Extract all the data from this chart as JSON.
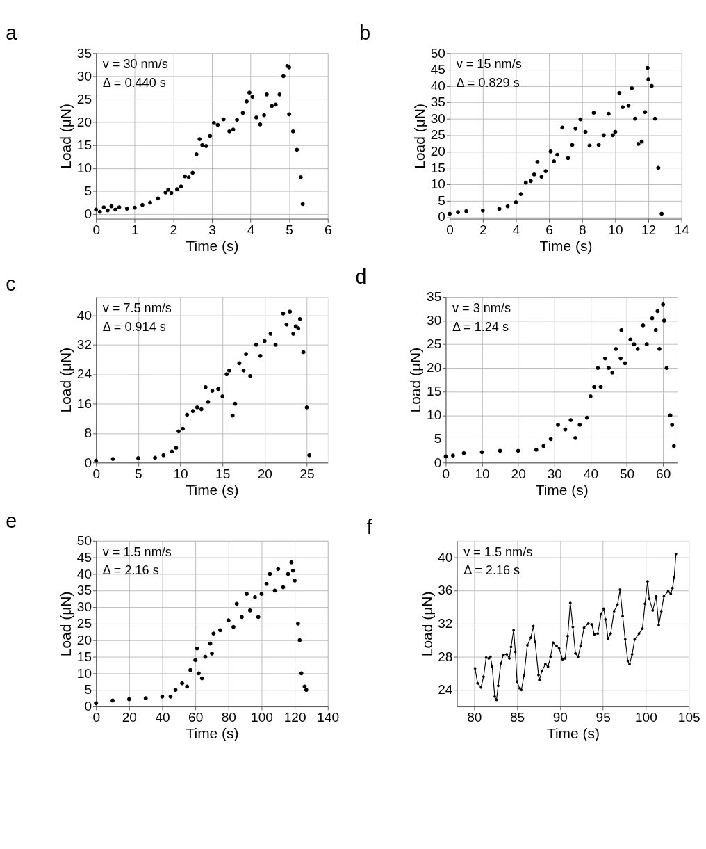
{
  "chart_data": [
    {
      "type": "scatter",
      "title": "a",
      "xlabel": "Time (s)",
      "ylabel": "Load (μN)",
      "xlim": [
        0,
        6
      ],
      "ylim": [
        -1,
        35
      ],
      "xticks": [
        0,
        1,
        2,
        3,
        4,
        5,
        6
      ],
      "yticks": [
        0,
        5,
        10,
        15,
        20,
        25,
        30,
        35
      ],
      "grid": true,
      "marker": "circle",
      "annotations": [
        "v = 30 nm/s",
        "Δ = 0.440 s"
      ],
      "series": [
        {
          "color": "#000000",
          "x": [
            0,
            0.1,
            0.2,
            0.3,
            0.4,
            0.5,
            0.6,
            0.8,
            1.0,
            1.2,
            1.4,
            1.6,
            1.8,
            1.87,
            1.95,
            2.1,
            2.2,
            2.3,
            2.4,
            2.5,
            2.6,
            2.68,
            2.75,
            2.85,
            2.95,
            3.05,
            3.15,
            3.3,
            3.45,
            3.55,
            3.65,
            3.8,
            3.9,
            3.97,
            4.05,
            4.15,
            4.25,
            4.35,
            4.42,
            4.55,
            4.65,
            4.75,
            4.85,
            4.95,
            5.0,
            5.0,
            5.1,
            5.2,
            5.3,
            5.35
          ],
          "values": [
            1,
            0.5,
            1.5,
            0.8,
            1.7,
            1.0,
            1.5,
            1.2,
            1.4,
            2.0,
            2.5,
            3.4,
            4.7,
            5.3,
            4.6,
            5.4,
            6.0,
            8.2,
            8.0,
            9.0,
            13,
            16.3,
            15,
            14.8,
            17,
            19.8,
            19.4,
            20.6,
            18,
            18.4,
            20.5,
            22,
            24.5,
            26.4,
            25.5,
            21,
            19.5,
            21.5,
            26,
            23.5,
            23.8,
            26,
            30,
            32.2,
            31.9,
            21.7,
            18.0,
            14,
            8,
            2.2
          ]
        }
      ]
    },
    {
      "type": "scatter",
      "title": "b",
      "xlabel": "Time (s)",
      "ylabel": "Load (μN)",
      "xlim": [
        0,
        14
      ],
      "ylim": [
        -0.5,
        50
      ],
      "xticks": [
        0,
        2,
        4,
        6,
        8,
        10,
        12,
        14
      ],
      "yticks": [
        0,
        5,
        10,
        15,
        20,
        25,
        30,
        35,
        40,
        45,
        50
      ],
      "grid": true,
      "marker": "circle",
      "annotations": [
        "v = 15 nm/s",
        "Δ = 0.829 s"
      ],
      "series": [
        {
          "color": "#000000",
          "x": [
            0,
            0.5,
            1,
            2,
            3,
            3.5,
            4,
            4.3,
            4.6,
            4.9,
            5.1,
            5.3,
            5.55,
            5.8,
            6.1,
            6.3,
            6.5,
            6.8,
            7.15,
            7.4,
            7.6,
            7.9,
            8.2,
            8.45,
            8.7,
            9.0,
            9.3,
            9.6,
            9.85,
            10.0,
            10.25,
            10.45,
            10.8,
            11.0,
            11.2,
            11.4,
            11.6,
            11.8,
            11.95,
            12.0,
            12.2,
            12.4,
            12.6,
            12.8
          ],
          "values": [
            1,
            1.5,
            1.8,
            2.0,
            2.5,
            3.3,
            4.5,
            7,
            10.5,
            11,
            13,
            16.8,
            12.3,
            14,
            20,
            17,
            19,
            27.3,
            18,
            22,
            27,
            29.8,
            26,
            21.8,
            31.8,
            22,
            25,
            31.5,
            25,
            26,
            37.8,
            33.5,
            34,
            39.3,
            30,
            22.3,
            23,
            32,
            45.5,
            42,
            40,
            30,
            15,
            1
          ]
        }
      ]
    },
    {
      "type": "scatter",
      "title": "c",
      "xlabel": "Time (s)",
      "ylabel": "Load (μN)",
      "xlim": [
        0,
        27.5
      ],
      "ylim": [
        0,
        45
      ],
      "xticks": [
        0,
        5,
        10,
        15,
        20,
        25
      ],
      "yticks": [
        0,
        8,
        16,
        24,
        32,
        40
      ],
      "grid": true,
      "marker": "circle",
      "annotations": [
        "v = 7.5 nm/s",
        "Δ = 0.914 s"
      ],
      "series": [
        {
          "color": "#000000",
          "x": [
            0,
            2,
            5,
            7,
            8,
            9,
            9.5,
            9.8,
            10.3,
            10.8,
            11.5,
            12,
            12.5,
            13,
            13.3,
            13.8,
            14.5,
            15,
            15.5,
            15.8,
            16.2,
            16.5,
            17,
            17.5,
            17.8,
            18.3,
            19,
            19.5,
            20,
            20.7,
            21.3,
            22.2,
            22.6,
            23,
            23.4,
            23.7,
            24,
            24.2,
            24.6,
            25,
            25.3
          ],
          "values": [
            0.5,
            1,
            1.2,
            1.3,
            2,
            3,
            4,
            8.5,
            9.2,
            13,
            14,
            15,
            14.5,
            20.5,
            16.5,
            19.5,
            20,
            18,
            24,
            25,
            12.8,
            16,
            27,
            25,
            29.5,
            23.5,
            32,
            29,
            33,
            35,
            32,
            40.5,
            37.5,
            41,
            35,
            37,
            36.5,
            39,
            30,
            15,
            2
          ]
        }
      ]
    },
    {
      "type": "scatter",
      "title": "d",
      "xlabel": "Time (s)",
      "ylabel": "Load (μN)",
      "xlim": [
        0,
        64
      ],
      "ylim": [
        0,
        35
      ],
      "xticks": [
        0,
        10,
        20,
        30,
        40,
        50,
        60
      ],
      "yticks": [
        0,
        5,
        10,
        15,
        20,
        25,
        30,
        35
      ],
      "grid": true,
      "marker": "circle",
      "annotations": [
        "v = 3 nm/s",
        "Δ = 1.24 s"
      ],
      "series": [
        {
          "color": "#000000",
          "x": [
            0,
            2,
            5,
            10,
            15,
            20,
            25,
            27,
            29,
            31,
            33,
            34.5,
            35.8,
            37,
            39,
            40,
            41,
            42,
            42.8,
            44,
            45,
            46,
            47,
            48.3,
            48.5,
            49.5,
            51,
            52,
            53,
            54.5,
            55.5,
            57,
            58,
            58.5,
            59,
            60,
            60.3,
            61,
            62,
            62.5,
            63
          ],
          "values": [
            1.3,
            1.5,
            2,
            2.2,
            2.5,
            2.5,
            2.7,
            3.5,
            5,
            8,
            7,
            9,
            5.2,
            8,
            9.5,
            14,
            16,
            20,
            16,
            22,
            20,
            19,
            24,
            22,
            28,
            21,
            26,
            25,
            24,
            29,
            25,
            30.5,
            28,
            32,
            24,
            33.4,
            30,
            20,
            10,
            8,
            3.5
          ]
        }
      ]
    },
    {
      "type": "scatter",
      "title": "e",
      "xlabel": "Time (s)",
      "ylabel": "Load (μN)",
      "xlim": [
        0,
        140
      ],
      "ylim": [
        0,
        50
      ],
      "xticks": [
        0,
        20,
        40,
        60,
        80,
        100,
        120,
        140
      ],
      "yticks": [
        0,
        5,
        10,
        15,
        20,
        25,
        30,
        35,
        40,
        45,
        50
      ],
      "grid": true,
      "marker": "circle",
      "annotations": [
        "v = 1.5 nm/s",
        "Δ = 2.16 s"
      ],
      "series": [
        {
          "color": "#000000",
          "x": [
            0,
            10,
            20,
            30,
            40,
            45,
            48,
            52,
            55,
            57,
            60,
            61,
            62,
            64,
            66,
            69,
            70,
            71,
            75,
            80,
            83,
            85,
            88,
            91,
            93,
            96,
            98,
            100,
            103,
            105,
            108,
            110,
            113,
            116,
            118,
            119,
            120,
            122,
            123,
            124,
            126,
            127
          ],
          "values": [
            1,
            1.8,
            2.2,
            2.5,
            3,
            3,
            5,
            7,
            6,
            11,
            14,
            17.5,
            10,
            8.5,
            15,
            19,
            16,
            22,
            23,
            26,
            24,
            31,
            27,
            34,
            29,
            33,
            27,
            34,
            37,
            40,
            35,
            41.5,
            36,
            40,
            43.5,
            41,
            38,
            25,
            20,
            10,
            6,
            5
          ]
        }
      ]
    },
    {
      "type": "line",
      "title": "f",
      "xlabel": "Time (s)",
      "ylabel": "Load (μN)",
      "xlim": [
        78,
        105
      ],
      "ylim": [
        22,
        42
      ],
      "xticks": [
        80,
        85,
        90,
        95,
        100,
        105
      ],
      "yticks": [
        24,
        28,
        32,
        36,
        40
      ],
      "grid": true,
      "marker": "circle",
      "line_style": "solid",
      "annotations": [
        "v = 1.5 nm/s",
        "Δ = 2.16 s"
      ],
      "series": [
        {
          "color": "#000000",
          "x": [
            80.1,
            80.4,
            80.8,
            81.1,
            81.4,
            81.7,
            81.9,
            82.1,
            82.4,
            82.6,
            82.8,
            83.1,
            83.4,
            83.8,
            84.1,
            84.3,
            84.6,
            84.8,
            85.0,
            85.3,
            85.5,
            85.8,
            86.2,
            86.6,
            86.9,
            87.1,
            87.5,
            87.6,
            87.9,
            88.3,
            88.6,
            88.9,
            89.2,
            89.6,
            89.9,
            90.3,
            90.6,
            90.9,
            91.2,
            91.5,
            91.8,
            92.1,
            92.4,
            92.8,
            93.3,
            93.7,
            94.0,
            94.4,
            94.8,
            95.1,
            95.3,
            95.6,
            95.9,
            96.3,
            96.7,
            97.0,
            97.3,
            97.6,
            97.9,
            98.1,
            98.4,
            98.7,
            99.2,
            99.6,
            99.9,
            100.2,
            100.4,
            100.8,
            101.2,
            101.5,
            101.8,
            102.1,
            102.6,
            102.9,
            103.1,
            103.3,
            103.5
          ],
          "values": [
            26.6,
            24.8,
            24.3,
            25.6,
            27.9,
            27.8,
            28.0,
            26.8,
            23.2,
            22.8,
            24.5,
            27.2,
            28.2,
            28.3,
            27.8,
            29.2,
            31.2,
            28.6,
            25.0,
            24.2,
            24.0,
            25.7,
            29.4,
            30.3,
            31.7,
            29.8,
            25.8,
            25.2,
            26.3,
            27.1,
            26.8,
            28.0,
            29.7,
            29.3,
            29.0,
            27.7,
            27.8,
            30.5,
            34.5,
            31.6,
            28.4,
            28.0,
            29.3,
            31.5,
            32.0,
            31.9,
            30.7,
            30.8,
            33.2,
            33.8,
            32.5,
            30.2,
            30.8,
            33.5,
            34.3,
            36.1,
            32.9,
            30.1,
            27.5,
            27.1,
            28.3,
            30.1,
            30.8,
            31.4,
            34.4,
            37.1,
            35.0,
            33.6,
            35.3,
            31.8,
            33.5,
            35.3,
            35.9,
            35.6,
            36.3,
            37.6,
            40.4
          ]
        }
      ]
    }
  ]
}
